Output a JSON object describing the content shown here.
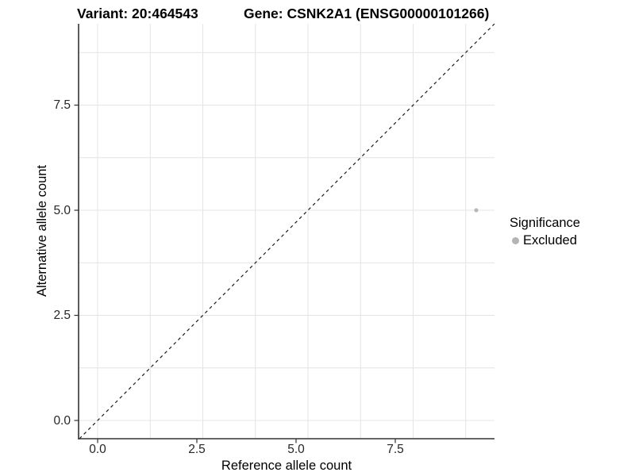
{
  "titles": {
    "variant": "Variant: 20:464543",
    "gene": "Gene: CSNK2A1 (ENSG00000101266)"
  },
  "axes": {
    "x_label": "Reference allele count",
    "y_label": "Alternative allele count",
    "x_tick_labels": [
      "0.0",
      "2.5",
      "5.0",
      "7.5"
    ],
    "y_tick_labels": [
      "0.0",
      "2.5",
      "5.0",
      "7.5"
    ]
  },
  "legend": {
    "title": "Significance",
    "items": [
      {
        "label": "Excluded",
        "color": "#b4b4b4"
      }
    ]
  },
  "colors": {
    "background": "#ffffff",
    "gridline": "#e4e4e4",
    "axis_line": "#333333",
    "tick_mark": "#333333",
    "tick_label": "#262626",
    "reference_line": "#1a1a1a",
    "point": "#b9b9b9"
  },
  "chart_data": {
    "type": "scatter",
    "title": "Variant: 20:464543 | Gene: CSNK2A1 (ENSG00000101266)",
    "xlabel": "Reference allele count",
    "ylabel": "Alternative allele count",
    "x_ticks": [
      0.0,
      2.5,
      5.0,
      7.5
    ],
    "x_tick_labels": [
      "0.0",
      "2.5",
      "5.0",
      "7.5"
    ],
    "y_ticks": [
      0.0,
      2.5,
      5.0,
      7.5
    ],
    "y_tick_labels": [
      "0.0",
      "2.5",
      "5.0",
      "7.5"
    ],
    "xlim": [
      -0.45,
      9.43
    ],
    "ylim": [
      -0.43,
      9.43
    ],
    "grid": true,
    "grid_interval": 1.25,
    "grid_max": 8.75,
    "points": [
      {
        "x": 9,
        "y": 5,
        "significance": "Excluded",
        "color": "#b9b9b9",
        "radius": 2.6
      }
    ],
    "reference_line": {
      "slope": 1,
      "intercept": 0,
      "style": "dashed"
    },
    "legend": {
      "title": "Significance",
      "entries": [
        "Excluded"
      ],
      "position": "right"
    }
  }
}
